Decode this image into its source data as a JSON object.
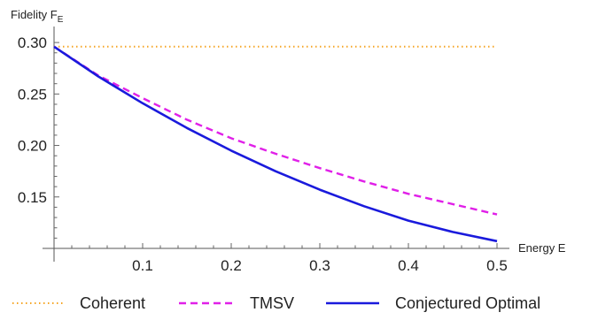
{
  "chart_data": {
    "type": "line",
    "ylabel_main": "Fidelity F",
    "ylabel_sub": "E",
    "xlabel": "Energy E",
    "xlim": [
      0,
      0.5
    ],
    "ylim": [
      0.1,
      0.3
    ],
    "x_ticks": [
      0.1,
      0.2,
      0.3,
      0.4,
      0.5
    ],
    "x_tick_labels": [
      "0.1",
      "0.2",
      "0.3",
      "0.4",
      "0.5"
    ],
    "y_ticks": [
      0.3,
      0.25,
      0.2,
      0.15
    ],
    "y_tick_labels": [
      "0.30",
      "0.25",
      "0.20",
      "0.15"
    ],
    "grid": false,
    "legend_position": "bottom",
    "series": [
      {
        "name": "Coherent",
        "style": "dotted",
        "color": "#F5A524",
        "x": [
          0,
          0.1,
          0.2,
          0.3,
          0.4,
          0.5
        ],
        "y": [
          0.296,
          0.296,
          0.296,
          0.296,
          0.296,
          0.296
        ]
      },
      {
        "name": "TMSV",
        "style": "dashed",
        "color": "#E020E8",
        "x": [
          0,
          0.05,
          0.1,
          0.15,
          0.2,
          0.25,
          0.3,
          0.35,
          0.4,
          0.45,
          0.5
        ],
        "y": [
          0.296,
          0.268,
          0.246,
          0.225,
          0.207,
          0.192,
          0.178,
          0.165,
          0.153,
          0.143,
          0.133
        ]
      },
      {
        "name": "Conjectured Optimal",
        "style": "solid",
        "color": "#1A1ADC",
        "x": [
          0,
          0.05,
          0.1,
          0.15,
          0.2,
          0.25,
          0.3,
          0.35,
          0.4,
          0.45,
          0.5
        ],
        "y": [
          0.296,
          0.267,
          0.241,
          0.217,
          0.195,
          0.175,
          0.157,
          0.141,
          0.127,
          0.116,
          0.107
        ]
      }
    ]
  }
}
